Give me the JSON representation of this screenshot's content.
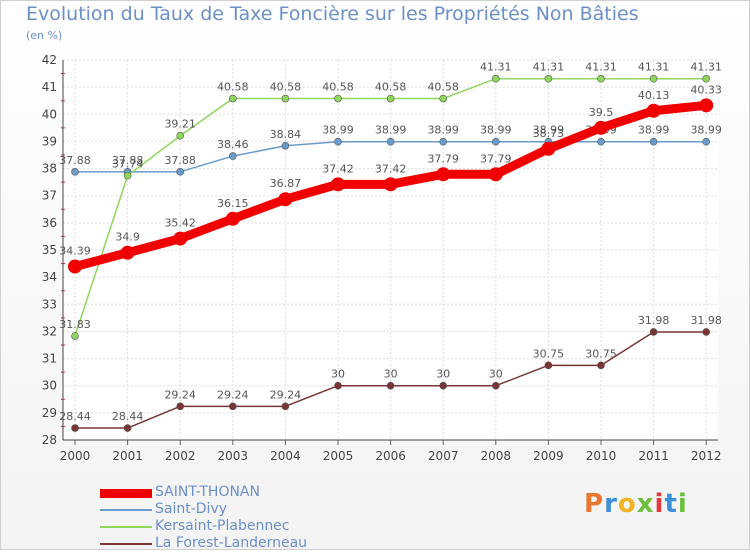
{
  "header": {
    "title": "Evolution du Taux de Taxe Foncière sur les Propriétés Non Bâties",
    "subtitle": "(en %)"
  },
  "logo": {
    "text": "Proxiti",
    "colors": [
      "#e8762c",
      "#3c8fd6",
      "#f0b323",
      "#6cbf3b",
      "#e23b3b",
      "#3c8fd6",
      "#6cbf3b"
    ]
  },
  "chart_data": {
    "type": "line",
    "x": [
      "2000",
      "2001",
      "2002",
      "2003",
      "2004",
      "2005",
      "2006",
      "2007",
      "2008",
      "2009",
      "2010",
      "2011",
      "2012"
    ],
    "ylim": [
      28,
      42
    ],
    "yticks": [
      28,
      29,
      30,
      31,
      32,
      33,
      34,
      35,
      36,
      37,
      38,
      39,
      40,
      41,
      42
    ],
    "grid": true,
    "legend_position": "bottom-left",
    "series": [
      {
        "name": "SAINT-THONAN",
        "color": "#f00000",
        "values": [
          34.39,
          34.9,
          35.42,
          36.15,
          36.87,
          37.42,
          37.42,
          37.79,
          37.79,
          38.73,
          39.5,
          40.13,
          40.33
        ],
        "labels": [
          "34.39",
          "34.9",
          "35.42",
          "36.15",
          "36.87",
          "37.42",
          "37.42",
          "37.79",
          "37.79",
          "38.73",
          "39.5",
          "40.13",
          "40.33"
        ]
      },
      {
        "name": "Saint-Divy",
        "color": "#6a9bcb",
        "values": [
          37.88,
          37.88,
          37.88,
          38.46,
          38.84,
          38.99,
          38.99,
          38.99,
          38.99,
          38.99,
          38.99,
          38.99,
          38.99
        ],
        "labels": [
          "37.88",
          "37.88",
          "37.88",
          "38.46",
          "38.84",
          "38.99",
          "38.99",
          "38.99",
          "38.99",
          "38.99",
          "38.99",
          "38.99",
          "38.99"
        ]
      },
      {
        "name": "Kersaint-Plabennec",
        "color": "#8fd65c",
        "values": [
          31.83,
          37.74,
          39.21,
          40.58,
          40.58,
          40.58,
          40.58,
          40.58,
          41.31,
          41.31,
          41.31,
          41.31,
          41.31
        ],
        "labels": [
          "31.83",
          "37.74",
          "39.21",
          "40.58",
          "40.58",
          "40.58",
          "40.58",
          "40.58",
          "41.31",
          "41.31",
          "41.31",
          "41.31",
          "41.31"
        ]
      },
      {
        "name": "La Forest-Landerneau",
        "color": "#7a3434",
        "values": [
          28.44,
          28.44,
          29.24,
          29.24,
          29.24,
          30,
          30,
          30,
          30,
          30.75,
          30.75,
          31.98,
          31.98
        ],
        "labels": [
          "28.44",
          "28.44",
          "29.24",
          "29.24",
          "29.24",
          "30",
          "30",
          "30",
          "30",
          "30.75",
          "30.75",
          "31.98",
          "31.98"
        ]
      }
    ]
  }
}
